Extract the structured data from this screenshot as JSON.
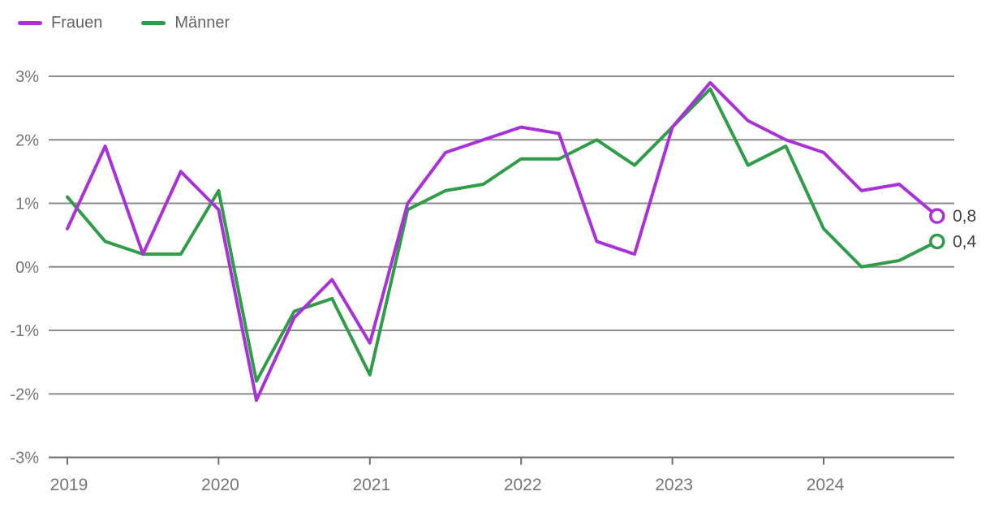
{
  "legend": {
    "items": [
      {
        "label": "Frauen"
      },
      {
        "label": "Männer"
      }
    ]
  },
  "colors": {
    "frauen": "#a832d8",
    "maenner": "#2f9c48",
    "grid": "#8c8c8c",
    "axis": "#6f6f6f",
    "axis_text": "#757575",
    "value_label_text": "#404040",
    "background": "#ffffff"
  },
  "chart_data": {
    "type": "line",
    "title": "",
    "xlabel": "",
    "ylabel": "",
    "grid": true,
    "legend_position": "top-left",
    "ylim": [
      -3,
      3
    ],
    "y_tick_values": [
      3,
      2,
      1,
      0,
      -1,
      -2,
      -3
    ],
    "y_tick_labels": [
      "3%",
      "2%",
      "1%",
      "0%",
      "-1%",
      "-2%",
      "-3%"
    ],
    "x_tick_labels": [
      "2019",
      "2020",
      "2021",
      "2022",
      "2023",
      "2024"
    ],
    "x_tick_positions": [
      0,
      4,
      8,
      12,
      16,
      20
    ],
    "x": [
      "2019 Q1",
      "2019 Q2",
      "2019 Q3",
      "2019 Q4",
      "2020 Q1",
      "2020 Q2",
      "2020 Q3",
      "2020 Q4",
      "2021 Q1",
      "2021 Q2",
      "2021 Q3",
      "2021 Q4",
      "2022 Q1",
      "2022 Q2",
      "2022 Q3",
      "2022 Q4",
      "2023 Q1",
      "2023 Q2",
      "2023 Q3",
      "2023 Q4",
      "2024 Q1",
      "2024 Q2",
      "2024 Q3",
      "2024 Q4"
    ],
    "series": [
      {
        "name": "Frauen",
        "color": "#a832d8",
        "values": [
          0.6,
          1.9,
          0.2,
          1.5,
          0.9,
          -2.1,
          -0.8,
          -0.2,
          -1.2,
          1.0,
          1.8,
          2.0,
          2.2,
          2.1,
          0.4,
          0.2,
          2.2,
          2.9,
          2.3,
          2.0,
          1.8,
          1.2,
          1.3,
          0.8
        ]
      },
      {
        "name": "Männer",
        "color": "#2f9c48",
        "values": [
          1.1,
          0.4,
          0.2,
          0.2,
          1.2,
          -1.8,
          -0.7,
          -0.5,
          -1.7,
          0.9,
          1.2,
          1.3,
          1.7,
          1.7,
          2.0,
          1.6,
          2.2,
          2.8,
          1.6,
          1.9,
          0.6,
          0.0,
          0.1,
          0.4
        ]
      }
    ],
    "end_labels": [
      {
        "series": "Frauen",
        "text": "0,8",
        "value": 0.8
      },
      {
        "series": "Männer",
        "text": "0,4",
        "value": 0.4
      }
    ]
  }
}
